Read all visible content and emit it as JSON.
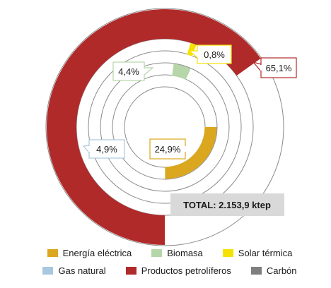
{
  "chart_data": {
    "type": "donut",
    "title": "",
    "total_label": "TOTAL: 2.153,9 ktep",
    "series": [
      {
        "name": "Energía eléctrica",
        "value": 24.9,
        "label": "24,9%",
        "color": "#dba71e"
      },
      {
        "name": "Biomasa",
        "value": 4.4,
        "label": "4,4%",
        "color": "#b5d6a8"
      },
      {
        "name": "Solar térmica",
        "value": 0.8,
        "label": "0,8%",
        "color": "#f6e200"
      },
      {
        "name": "Gas natural",
        "value": 4.9,
        "label": "4,9%",
        "color": "#a9c8df"
      },
      {
        "name": "Productos petrolíferos",
        "value": 65.1,
        "label": "65,1%",
        "color": "#b12a2a"
      },
      {
        "name": "Carbón",
        "value": 0,
        "label": "",
        "color": "#7f7f7f"
      }
    ],
    "legend_position": "bottom"
  },
  "legend": {
    "row1": [
      "Energía eléctrica",
      "Biomasa",
      "Solar térmica"
    ],
    "row2": [
      "Gas natural",
      "Productos petrolíferos",
      "Carbón"
    ]
  }
}
